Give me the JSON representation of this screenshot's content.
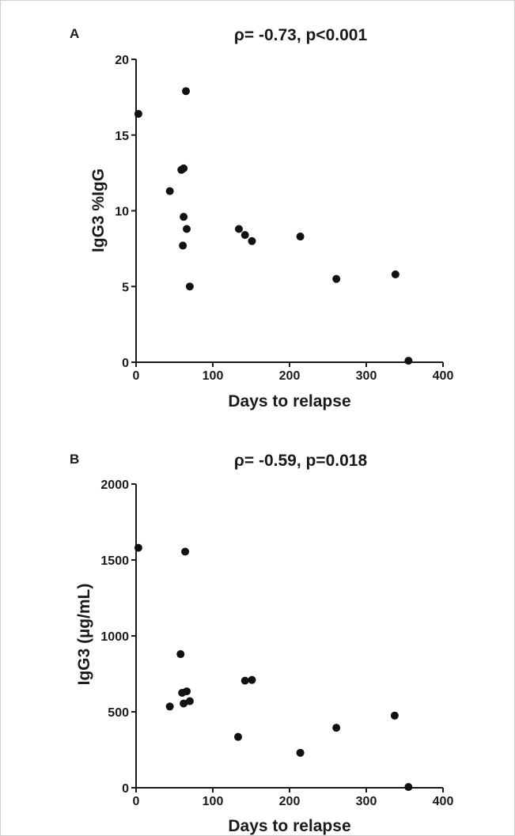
{
  "chart_data": [
    {
      "type": "scatter",
      "panel": "A",
      "title": "ρ= -0.73, p<0.001",
      "xlabel": "Days to relapse",
      "ylabel": "IgG3 %IgG",
      "xlim": [
        0,
        400
      ],
      "ylim": [
        0,
        20
      ],
      "xticks": [
        0,
        100,
        200,
        300,
        400
      ],
      "yticks": [
        0,
        5,
        10,
        15,
        20
      ],
      "grid": false,
      "points": [
        {
          "x": 3,
          "y": 16.4
        },
        {
          "x": 44,
          "y": 11.3
        },
        {
          "x": 59,
          "y": 12.7
        },
        {
          "x": 62,
          "y": 12.8
        },
        {
          "x": 61,
          "y": 7.7
        },
        {
          "x": 62,
          "y": 9.6
        },
        {
          "x": 65,
          "y": 17.9
        },
        {
          "x": 66,
          "y": 8.8
        },
        {
          "x": 70,
          "y": 5.0
        },
        {
          "x": 134,
          "y": 8.8
        },
        {
          "x": 142,
          "y": 8.4
        },
        {
          "x": 151,
          "y": 8.0
        },
        {
          "x": 214,
          "y": 8.3
        },
        {
          "x": 261,
          "y": 5.5
        },
        {
          "x": 338,
          "y": 5.8
        },
        {
          "x": 355,
          "y": 0.1
        }
      ]
    },
    {
      "type": "scatter",
      "panel": "B",
      "title": "ρ= -0.59, p=0.018",
      "xlabel": "Days to relapse",
      "ylabel": "IgG3 (µg/mL)",
      "xlim": [
        0,
        400
      ],
      "ylim": [
        0,
        2000
      ],
      "xticks": [
        0,
        100,
        200,
        300,
        400
      ],
      "yticks": [
        0,
        500,
        1000,
        1500,
        2000
      ],
      "grid": false,
      "points": [
        {
          "x": 3,
          "y": 1580
        },
        {
          "x": 44,
          "y": 535
        },
        {
          "x": 58,
          "y": 880
        },
        {
          "x": 60,
          "y": 625
        },
        {
          "x": 62,
          "y": 555
        },
        {
          "x": 64,
          "y": 1555
        },
        {
          "x": 66,
          "y": 635
        },
        {
          "x": 70,
          "y": 570
        },
        {
          "x": 133,
          "y": 335
        },
        {
          "x": 142,
          "y": 705
        },
        {
          "x": 151,
          "y": 710
        },
        {
          "x": 214,
          "y": 230
        },
        {
          "x": 261,
          "y": 395
        },
        {
          "x": 337,
          "y": 475
        },
        {
          "x": 355,
          "y": 5
        }
      ]
    }
  ],
  "colors": {
    "points": "#111111",
    "axes": "#1a1a1a"
  }
}
